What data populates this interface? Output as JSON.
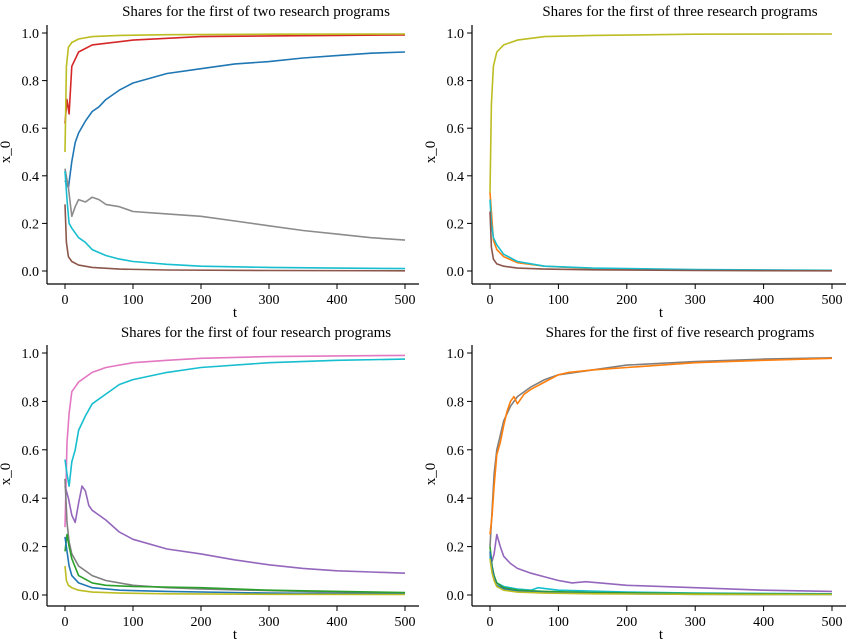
{
  "chart_data": [
    {
      "type": "line",
      "title": "Shares for the first of two research programs",
      "xlabel": "t",
      "ylabel": "x_0",
      "xlim": [
        0,
        500
      ],
      "ylim": [
        0,
        1
      ],
      "xticks": [
        0,
        100,
        200,
        300,
        400,
        500
      ],
      "yticks": [
        "0.0",
        "0.2",
        "0.4",
        "0.6",
        "0.8",
        "1.0"
      ],
      "grid": false,
      "series": [
        {
          "color": "#d62728",
          "x": [
            0,
            3,
            6,
            10,
            20,
            40,
            100,
            200,
            300,
            400,
            500
          ],
          "y": [
            0.62,
            0.72,
            0.66,
            0.86,
            0.92,
            0.95,
            0.97,
            0.985,
            0.988,
            0.99,
            0.992
          ]
        },
        {
          "color": "#1f77b4",
          "x": [
            0,
            5,
            10,
            15,
            20,
            30,
            40,
            50,
            60,
            80,
            100,
            150,
            200,
            250,
            300,
            350,
            400,
            450,
            500
          ],
          "y": [
            0.38,
            0.35,
            0.46,
            0.54,
            0.58,
            0.63,
            0.67,
            0.69,
            0.72,
            0.76,
            0.79,
            0.83,
            0.85,
            0.87,
            0.88,
            0.895,
            0.905,
            0.915,
            0.92
          ]
        },
        {
          "color": "#8c8c8c",
          "x": [
            0,
            5,
            10,
            15,
            20,
            30,
            40,
            50,
            60,
            80,
            100,
            150,
            200,
            250,
            300,
            350,
            400,
            450,
            500
          ],
          "y": [
            0.43,
            0.35,
            0.23,
            0.27,
            0.3,
            0.29,
            0.31,
            0.3,
            0.28,
            0.27,
            0.25,
            0.24,
            0.23,
            0.21,
            0.19,
            0.17,
            0.155,
            0.14,
            0.13
          ]
        },
        {
          "color": "#17becf",
          "x": [
            0,
            3,
            6,
            10,
            20,
            30,
            40,
            60,
            80,
            100,
            150,
            200,
            300,
            400,
            500
          ],
          "y": [
            0.42,
            0.3,
            0.2,
            0.18,
            0.14,
            0.12,
            0.09,
            0.065,
            0.05,
            0.04,
            0.028,
            0.02,
            0.015,
            0.012,
            0.01
          ]
        },
        {
          "color": "#8c564b",
          "x": [
            0,
            2,
            5,
            10,
            20,
            40,
            80,
            150,
            300,
            500
          ],
          "y": [
            0.28,
            0.12,
            0.06,
            0.04,
            0.025,
            0.015,
            0.008,
            0.004,
            0.002,
            0.001
          ]
        },
        {
          "color": "#bcbd22",
          "x": [
            0,
            2,
            5,
            10,
            20,
            40,
            80,
            150,
            300,
            500
          ],
          "y": [
            0.5,
            0.86,
            0.94,
            0.96,
            0.975,
            0.985,
            0.99,
            0.993,
            0.995,
            0.996
          ]
        }
      ]
    },
    {
      "type": "line",
      "title": "Shares for the first of three research programs",
      "xlabel": "t",
      "ylabel": "x_0",
      "xlim": [
        0,
        500
      ],
      "ylim": [
        0,
        1
      ],
      "xticks": [
        0,
        100,
        200,
        300,
        400,
        500
      ],
      "yticks": [
        "0.0",
        "0.2",
        "0.4",
        "0.6",
        "0.8",
        "1.0"
      ],
      "grid": false,
      "series": [
        {
          "color": "#bcbd22",
          "x": [
            0,
            2,
            5,
            10,
            20,
            40,
            80,
            150,
            300,
            500
          ],
          "y": [
            0.33,
            0.7,
            0.86,
            0.92,
            0.95,
            0.97,
            0.985,
            0.99,
            0.995,
            0.996
          ]
        },
        {
          "color": "#ff7f0e",
          "x": [
            0,
            2,
            5,
            10,
            20,
            40,
            80,
            150,
            300,
            500
          ],
          "y": [
            0.33,
            0.25,
            0.13,
            0.09,
            0.06,
            0.035,
            0.02,
            0.01,
            0.005,
            0.002
          ]
        },
        {
          "color": "#17becf",
          "x": [
            0,
            2,
            5,
            10,
            20,
            40,
            80,
            150,
            300,
            500
          ],
          "y": [
            0.3,
            0.2,
            0.14,
            0.11,
            0.07,
            0.04,
            0.02,
            0.012,
            0.006,
            0.003
          ]
        },
        {
          "color": "#8c564b",
          "x": [
            0,
            2,
            5,
            10,
            20,
            40,
            80,
            150,
            300,
            500
          ],
          "y": [
            0.25,
            0.1,
            0.05,
            0.03,
            0.02,
            0.012,
            0.008,
            0.005,
            0.002,
            0.001
          ]
        }
      ]
    },
    {
      "type": "line",
      "title": "Shares for the first of four research programs",
      "xlabel": "t",
      "ylabel": "x_0",
      "xlim": [
        0,
        500
      ],
      "ylim": [
        0,
        1
      ],
      "xticks": [
        0,
        100,
        200,
        300,
        400,
        500
      ],
      "yticks": [
        "0.0",
        "0.2",
        "0.4",
        "0.6",
        "0.8",
        "1.0"
      ],
      "grid": false,
      "series": [
        {
          "color": "#e377c2",
          "x": [
            0,
            3,
            6,
            10,
            15,
            20,
            40,
            60,
            100,
            150,
            200,
            300,
            400,
            500
          ],
          "y": [
            0.28,
            0.63,
            0.75,
            0.84,
            0.86,
            0.88,
            0.92,
            0.94,
            0.96,
            0.97,
            0.978,
            0.985,
            0.988,
            0.99
          ]
        },
        {
          "color": "#17becf",
          "x": [
            0,
            3,
            6,
            10,
            15,
            20,
            30,
            40,
            60,
            80,
            100,
            150,
            200,
            300,
            400,
            500
          ],
          "y": [
            0.56,
            0.5,
            0.45,
            0.55,
            0.6,
            0.68,
            0.74,
            0.79,
            0.83,
            0.87,
            0.89,
            0.92,
            0.94,
            0.96,
            0.97,
            0.975
          ]
        },
        {
          "color": "#9467bd",
          "x": [
            0,
            5,
            10,
            15,
            20,
            25,
            30,
            35,
            40,
            50,
            60,
            80,
            100,
            150,
            200,
            250,
            300,
            350,
            400,
            450,
            500
          ],
          "y": [
            0.45,
            0.4,
            0.33,
            0.3,
            0.38,
            0.45,
            0.43,
            0.37,
            0.35,
            0.33,
            0.31,
            0.26,
            0.23,
            0.19,
            0.17,
            0.145,
            0.125,
            0.11,
            0.1,
            0.095,
            0.09
          ]
        },
        {
          "color": "#7f7f7f",
          "x": [
            0,
            3,
            6,
            10,
            20,
            40,
            60,
            100,
            150,
            200,
            300,
            400,
            500
          ],
          "y": [
            0.48,
            0.3,
            0.22,
            0.17,
            0.12,
            0.08,
            0.06,
            0.04,
            0.03,
            0.025,
            0.018,
            0.012,
            0.008
          ]
        },
        {
          "color": "#2ca02c",
          "x": [
            0,
            3,
            6,
            10,
            20,
            40,
            60,
            100,
            200,
            300,
            500
          ],
          "y": [
            0.18,
            0.25,
            0.2,
            0.15,
            0.08,
            0.05,
            0.04,
            0.035,
            0.03,
            0.02,
            0.01
          ]
        },
        {
          "color": "#1f77b4",
          "x": [
            0,
            3,
            6,
            10,
            20,
            40,
            80,
            150,
            300,
            500
          ],
          "y": [
            0.24,
            0.18,
            0.12,
            0.08,
            0.05,
            0.03,
            0.02,
            0.015,
            0.008,
            0.004
          ]
        },
        {
          "color": "#bcbd22",
          "x": [
            0,
            2,
            5,
            10,
            20,
            40,
            80,
            150,
            300,
            500
          ],
          "y": [
            0.12,
            0.06,
            0.04,
            0.03,
            0.02,
            0.012,
            0.008,
            0.005,
            0.003,
            0.002
          ]
        }
      ]
    },
    {
      "type": "line",
      "title": "Shares for the first of five research programs",
      "xlabel": "t",
      "ylabel": "x_0",
      "xlim": [
        0,
        500
      ],
      "ylim": [
        0,
        1
      ],
      "xticks": [
        0,
        100,
        200,
        300,
        400,
        500
      ],
      "yticks": [
        "0.0",
        "0.2",
        "0.4",
        "0.6",
        "0.8",
        "1.0"
      ],
      "grid": false,
      "series": [
        {
          "color": "#7f7f7f",
          "x": [
            0,
            3,
            6,
            10,
            15,
            20,
            30,
            40,
            60,
            80,
            100,
            150,
            200,
            300,
            400,
            500
          ],
          "y": [
            0.2,
            0.35,
            0.5,
            0.6,
            0.66,
            0.72,
            0.78,
            0.82,
            0.86,
            0.89,
            0.91,
            0.93,
            0.95,
            0.965,
            0.975,
            0.98
          ]
        },
        {
          "color": "#ff7f0e",
          "x": [
            0,
            3,
            6,
            10,
            15,
            20,
            25,
            30,
            35,
            40,
            50,
            60,
            80,
            100,
            115,
            150,
            200,
            300,
            400,
            500
          ],
          "y": [
            0.25,
            0.33,
            0.45,
            0.58,
            0.63,
            0.7,
            0.76,
            0.8,
            0.82,
            0.79,
            0.83,
            0.85,
            0.88,
            0.91,
            0.92,
            0.93,
            0.94,
            0.96,
            0.97,
            0.978
          ]
        },
        {
          "color": "#9467bd",
          "x": [
            0,
            3,
            6,
            10,
            15,
            20,
            30,
            40,
            60,
            80,
            100,
            110,
            120,
            140,
            200,
            300,
            400,
            500
          ],
          "y": [
            0.17,
            0.14,
            0.17,
            0.25,
            0.2,
            0.16,
            0.13,
            0.11,
            0.09,
            0.075,
            0.06,
            0.055,
            0.05,
            0.055,
            0.04,
            0.03,
            0.02,
            0.015
          ]
        },
        {
          "color": "#17becf",
          "x": [
            0,
            3,
            6,
            10,
            20,
            40,
            60,
            70,
            100,
            200,
            300,
            500
          ],
          "y": [
            0.16,
            0.1,
            0.07,
            0.05,
            0.035,
            0.025,
            0.02,
            0.03,
            0.02,
            0.012,
            0.008,
            0.005
          ]
        },
        {
          "color": "#2ca02c",
          "x": [
            0,
            3,
            6,
            10,
            20,
            40,
            80,
            150,
            300,
            500
          ],
          "y": [
            0.2,
            0.12,
            0.08,
            0.05,
            0.03,
            0.02,
            0.015,
            0.01,
            0.006,
            0.004
          ]
        },
        {
          "color": "#1f77b4",
          "x": [
            0,
            3,
            6,
            10,
            20,
            40,
            80,
            150,
            300,
            500
          ],
          "y": [
            0.18,
            0.11,
            0.07,
            0.04,
            0.025,
            0.015,
            0.01,
            0.006,
            0.003,
            0.002
          ]
        },
        {
          "color": "#bcbd22",
          "x": [
            0,
            3,
            6,
            10,
            20,
            40,
            80,
            150,
            300,
            500
          ],
          "y": [
            0.15,
            0.09,
            0.06,
            0.035,
            0.02,
            0.012,
            0.008,
            0.005,
            0.003,
            0.002
          ]
        }
      ]
    }
  ]
}
